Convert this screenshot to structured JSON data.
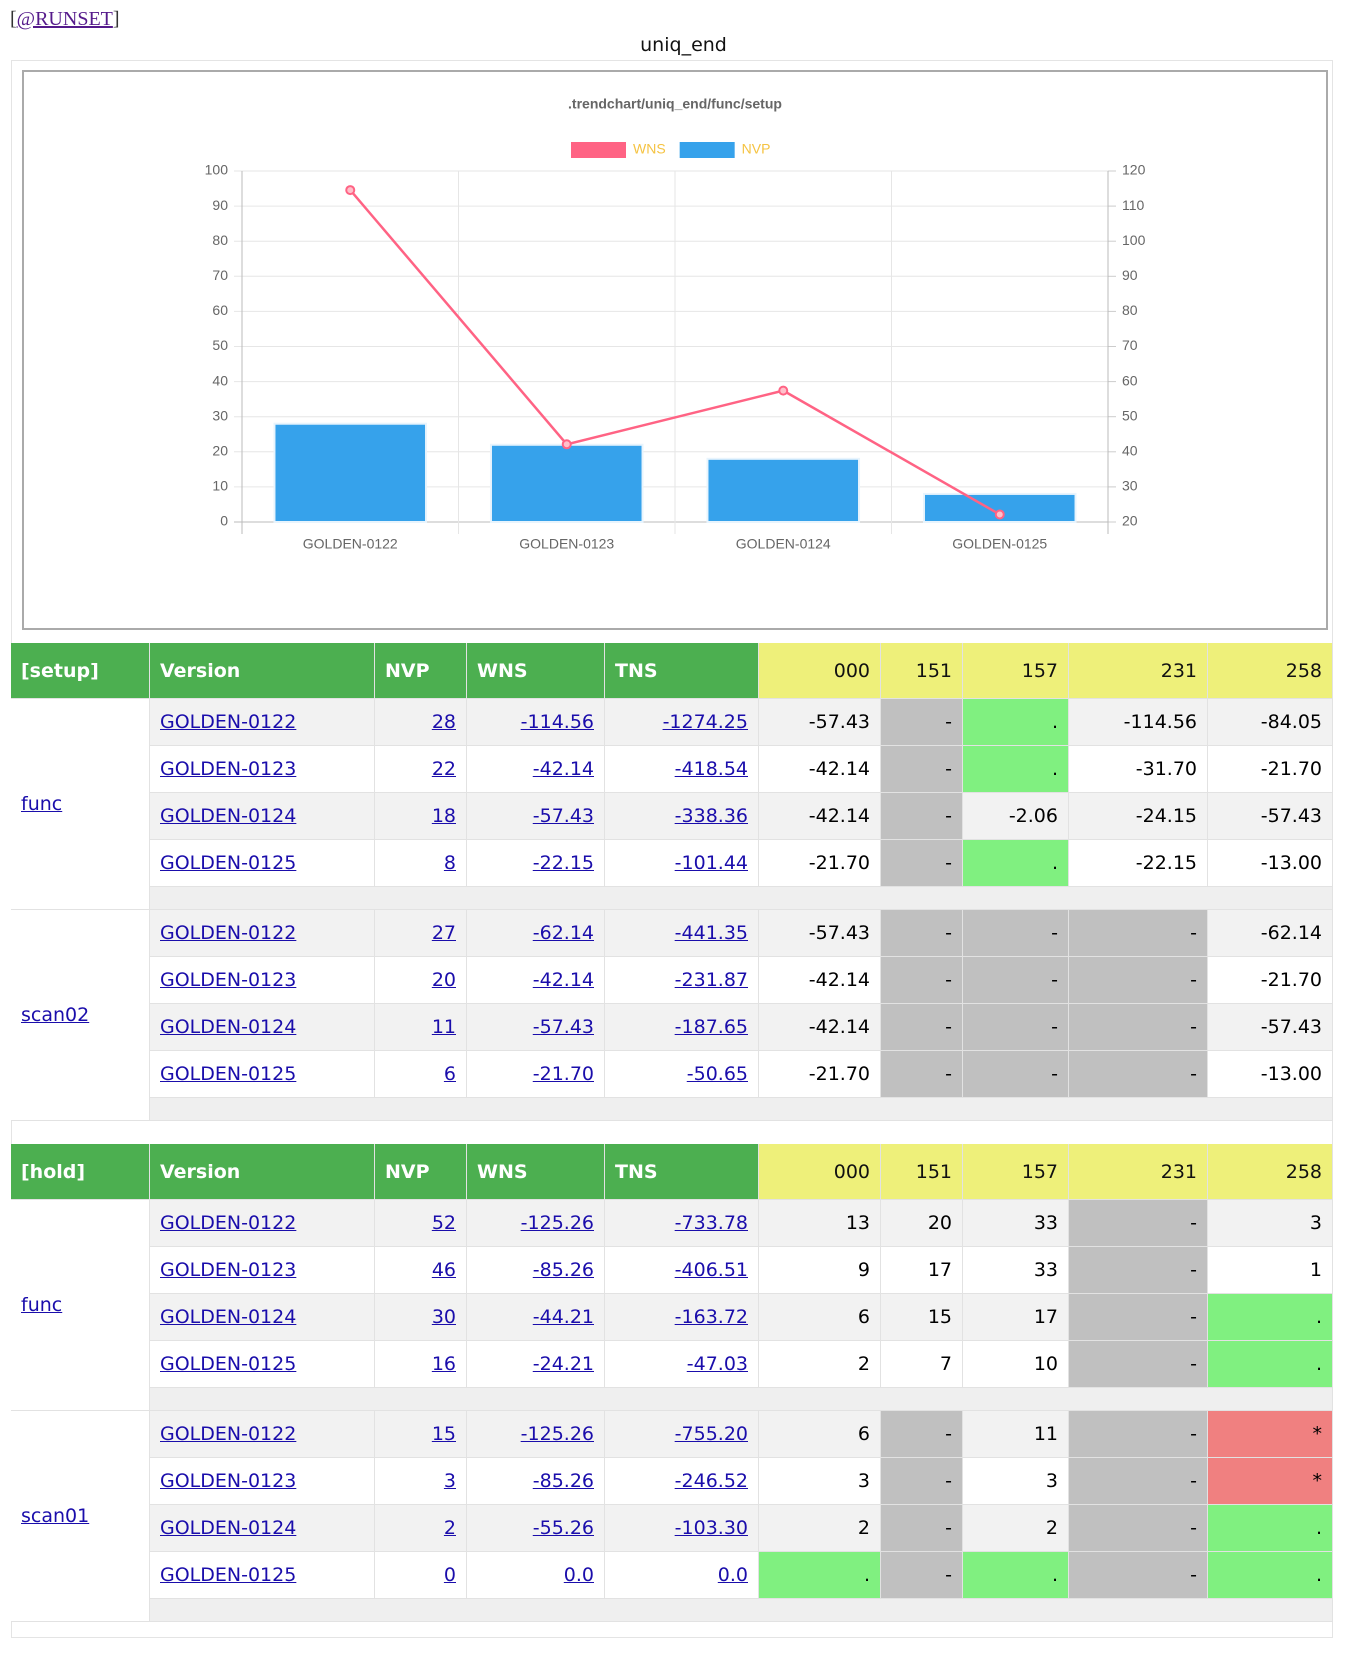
{
  "runset": {
    "open": "[",
    "link": "@RUNSET",
    "close": "]"
  },
  "title": "uniq_end",
  "chart_data": {
    "type": "bar",
    "title": ".trendchart/uniq_end/func/setup",
    "categories": [
      "GOLDEN-0122",
      "GOLDEN-0123",
      "GOLDEN-0124",
      "GOLDEN-0125"
    ],
    "series": [
      {
        "name": "WNS",
        "type": "line",
        "color": "#ff6384",
        "axis": "y2",
        "values": [
          114.56,
          42.14,
          57.43,
          22.15
        ]
      },
      {
        "name": "NVP",
        "type": "bar",
        "color": "#36a2eb",
        "values": [
          28,
          22,
          18,
          8
        ]
      }
    ],
    "ylim": [
      0,
      100
    ],
    "yticks": [
      0,
      10,
      20,
      30,
      40,
      50,
      60,
      70,
      80,
      90,
      100
    ],
    "y2lim": [
      20,
      120
    ],
    "y2ticks": [
      20,
      30,
      40,
      50,
      60,
      70,
      80,
      90,
      100,
      110,
      120
    ],
    "grid": true,
    "legend": "top"
  },
  "cell_colors": {
    "-": "#c0c0c0",
    ".": "#80f080",
    "*": "#f08080"
  },
  "tables": [
    {
      "section": "[setup]",
      "columns": [
        "Version",
        "NVP",
        "WNS",
        "TNS",
        "000",
        "151",
        "157",
        "231",
        "258"
      ],
      "groups": [
        {
          "name": "func",
          "rows": [
            [
              "GOLDEN-0122",
              "28",
              "-114.56",
              "-1274.25",
              "-57.43",
              "-",
              ".",
              "-114.56",
              "-84.05"
            ],
            [
              "GOLDEN-0123",
              "22",
              "-42.14",
              "-418.54",
              "-42.14",
              "-",
              ".",
              "-31.70",
              "-21.70"
            ],
            [
              "GOLDEN-0124",
              "18",
              "-57.43",
              "-338.36",
              "-42.14",
              "-",
              "-2.06",
              "-24.15",
              "-57.43"
            ],
            [
              "GOLDEN-0125",
              "8",
              "-22.15",
              "-101.44",
              "-21.70",
              "-",
              ".",
              "-22.15",
              "-13.00"
            ]
          ]
        },
        {
          "name": "scan02",
          "rows": [
            [
              "GOLDEN-0122",
              "27",
              "-62.14",
              "-441.35",
              "-57.43",
              "-",
              "-",
              "-",
              "-62.14"
            ],
            [
              "GOLDEN-0123",
              "20",
              "-42.14",
              "-231.87",
              "-42.14",
              "-",
              "-",
              "-",
              "-21.70"
            ],
            [
              "GOLDEN-0124",
              "11",
              "-57.43",
              "-187.65",
              "-42.14",
              "-",
              "-",
              "-",
              "-57.43"
            ],
            [
              "GOLDEN-0125",
              "6",
              "-21.70",
              "-50.65",
              "-21.70",
              "-",
              "-",
              "-",
              "-13.00"
            ]
          ]
        }
      ]
    },
    {
      "section": "[hold]",
      "columns": [
        "Version",
        "NVP",
        "WNS",
        "TNS",
        "000",
        "151",
        "157",
        "231",
        "258"
      ],
      "groups": [
        {
          "name": "func",
          "rows": [
            [
              "GOLDEN-0122",
              "52",
              "-125.26",
              "-733.78",
              "13",
              "20",
              "33",
              "-",
              "3"
            ],
            [
              "GOLDEN-0123",
              "46",
              "-85.26",
              "-406.51",
              "9",
              "17",
              "33",
              "-",
              "1"
            ],
            [
              "GOLDEN-0124",
              "30",
              "-44.21",
              "-163.72",
              "6",
              "15",
              "17",
              "-",
              "."
            ],
            [
              "GOLDEN-0125",
              "16",
              "-24.21",
              "-47.03",
              "2",
              "7",
              "10",
              "-",
              "."
            ]
          ]
        },
        {
          "name": "scan01",
          "rows": [
            [
              "GOLDEN-0122",
              "15",
              "-125.26",
              "-755.20",
              "6",
              "-",
              "11",
              "-",
              "*"
            ],
            [
              "GOLDEN-0123",
              "3",
              "-85.26",
              "-246.52",
              "3",
              "-",
              "3",
              "-",
              "*"
            ],
            [
              "GOLDEN-0124",
              "2",
              "-55.26",
              "-103.30",
              "2",
              "-",
              "2",
              "-",
              "."
            ],
            [
              "GOLDEN-0125",
              "0",
              "0.0",
              "0.0",
              ".",
              "-",
              ".",
              "-",
              "."
            ]
          ]
        }
      ]
    }
  ]
}
